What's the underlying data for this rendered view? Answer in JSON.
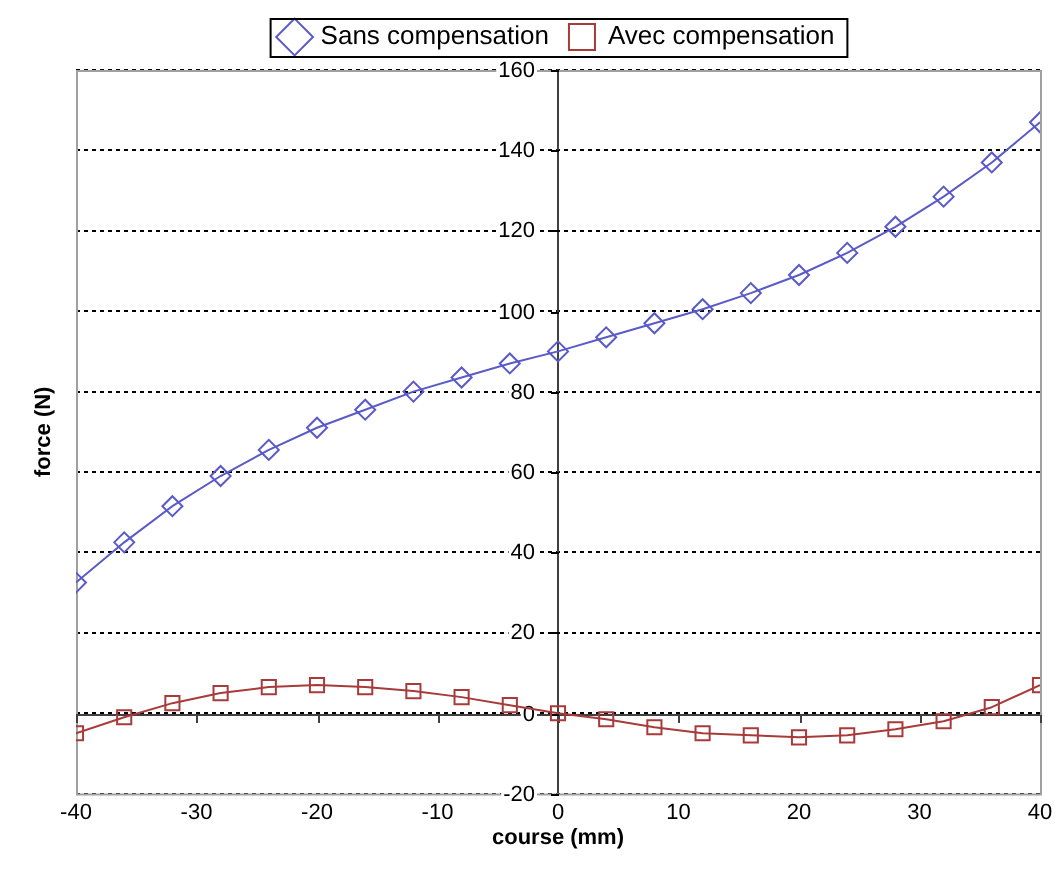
{
  "chart_data": {
    "type": "line",
    "xlabel": "course (mm)",
    "ylabel": "force (N)",
    "x": [
      -40,
      -36,
      -32,
      -28,
      -24,
      -20,
      -16,
      -12,
      -8,
      -4,
      0,
      4,
      8,
      12,
      16,
      20,
      24,
      28,
      32,
      36,
      40
    ],
    "series": [
      {
        "name": "Sans compensation",
        "color": "#5a5ac8",
        "marker": "diamond",
        "values": [
          32.5,
          42.5,
          51.5,
          59,
          65.5,
          71,
          75.5,
          80,
          83.5,
          87,
          90,
          93.5,
          97,
          100.5,
          104.5,
          109,
          114.5,
          121,
          128.5,
          137,
          147
        ]
      },
      {
        "name": "Avec compensation",
        "color": "#a83a3a",
        "marker": "square",
        "values": [
          -5,
          -1,
          2.5,
          5,
          6.5,
          7,
          6.5,
          5.5,
          4,
          2,
          0,
          -1.5,
          -3.5,
          -5,
          -5.5,
          -6,
          -5.5,
          -4,
          -2,
          1.5,
          7
        ]
      }
    ],
    "xlim": [
      -40,
      40
    ],
    "xticks": [
      -40,
      -30,
      -20,
      -10,
      0,
      10,
      20,
      30,
      40
    ],
    "ylim": [
      -20,
      160
    ],
    "yticks": [
      -20,
      0,
      20,
      40,
      60,
      80,
      100,
      120,
      140,
      160
    ],
    "grid": "y",
    "legend": "top",
    "line_style": "solid"
  }
}
